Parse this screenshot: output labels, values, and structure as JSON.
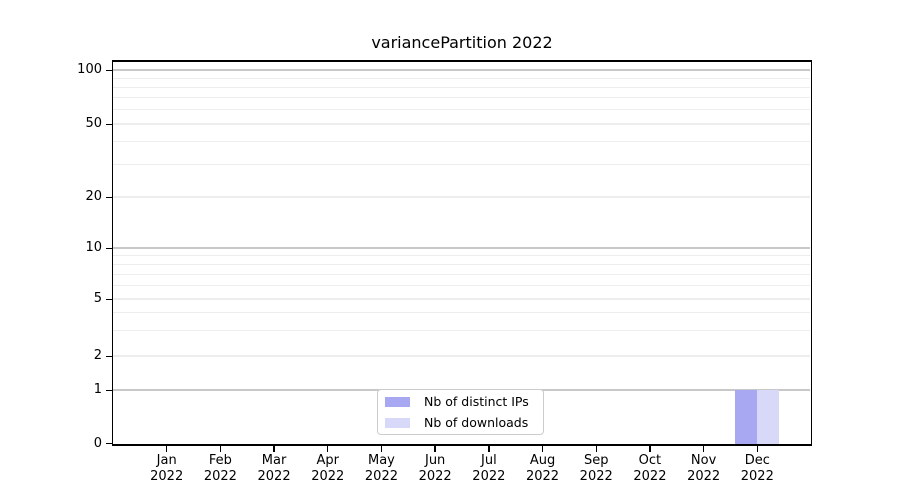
{
  "chart_data": {
    "type": "bar",
    "title": "variancePartition 2022",
    "x_year": "2022",
    "categories": [
      "Jan",
      "Feb",
      "Mar",
      "Apr",
      "May",
      "Jun",
      "Jul",
      "Aug",
      "Sep",
      "Oct",
      "Nov",
      "Dec"
    ],
    "series": [
      {
        "name": "Nb of distinct IPs",
        "color": "#a7a7f2",
        "values": [
          0,
          0,
          0,
          0,
          0,
          0,
          0,
          0,
          0,
          0,
          0,
          1
        ]
      },
      {
        "name": "Nb of downloads",
        "color": "#d8d8f8",
        "values": [
          0,
          0,
          0,
          0,
          0,
          0,
          0,
          0,
          0,
          0,
          0,
          1
        ]
      }
    ],
    "y_ticks": [
      0,
      1,
      2,
      5,
      10,
      20,
      50,
      100
    ],
    "y_scale": "symlog (linear 0-1, logarithmic above 1)",
    "ylim": [
      0,
      110
    ],
    "grid": true,
    "legend_position": "lower center",
    "colors": {
      "grid_major": "#c8c8c8",
      "grid_minor": "#ededed",
      "axis": "#000000",
      "text": "#000000",
      "background": "#ffffff"
    }
  }
}
